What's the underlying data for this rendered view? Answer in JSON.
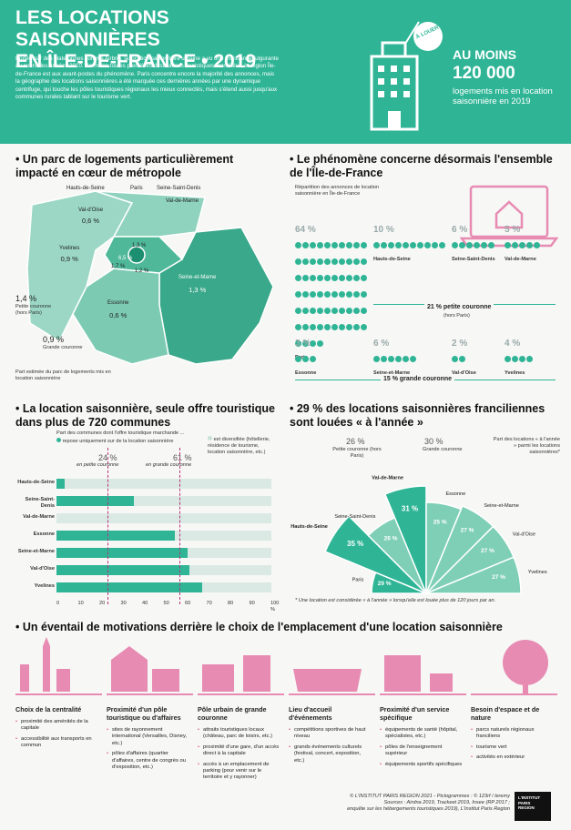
{
  "header": {
    "title_line1": "LES LOCATIONS SAISONNIÈRES",
    "title_line2": "EN ÎLE-DE-FRANCE • 2019",
    "intro": "Portée par des plateformes comme Airbnb, la location saisonnière urbaine a vu une croissance fulgurante au cours des années 2010. Parmi les toutes premières destinations touristiques mondiales, la région Île-de-France est aux avant-postes du phénomène. Paris concentre encore la majorité des annonces, mais la géographie des locations saisonnières a été marquée ces dernières années par une dynamique centrifuge, qui touche les pôles touristiques régionaux les mieux connectés, mais s'étend aussi jusqu'aux communes rurales tablant sur le tourisme vert.",
    "stat_title": "AU MOINS",
    "stat_number": "120 000",
    "stat_desc": "logements mis en location saisonnière en 2019",
    "tag": "À LOUER"
  },
  "map": {
    "title": "Un parc de logements particulièrement impacté en cœur de métropole",
    "labels": {
      "hds": "Hauts-de-Seine",
      "paris": "Paris",
      "ssd": "Seine-Saint-Denis",
      "vdm": "Val-de-Marne",
      "vdo": "Val-d'Oise",
      "vdo_pct": "0,6 %",
      "yv": "Yvelines",
      "yv_pct": "0,9 %",
      "sem": "Seine-et-Marne",
      "sem_pct": "1,3 %",
      "es": "Essonne",
      "es_pct": "0,6 %",
      "p1": "1,3 %",
      "p2": "6,5 %",
      "p3": "1,7 %",
      "p4": "1,2 %"
    },
    "petite_pct": "1,4 %",
    "petite_label": "Petite couronne (hors Paris)",
    "grande_pct": "0,9 %",
    "grande_label": "Grande couronne",
    "note": "Part estimée du parc de logements mis en location saisonnière"
  },
  "spread": {
    "title": "Le phénomène concerne désormais l'ensemble de l'Île-de-France",
    "subtitle": "Répartition des annonces de location saisonnière en Île-de-France",
    "row1": [
      {
        "pct": "64 %",
        "label": "Paris",
        "dots": 64
      },
      {
        "pct": "10 %",
        "label": "Hauts-de-Seine",
        "dots": 10
      },
      {
        "pct": "6 %",
        "label": "Seine-Saint-Denis",
        "dots": 6
      },
      {
        "pct": "5 %",
        "label": "Val-de-Marne",
        "dots": 5
      }
    ],
    "petite": "21 % petite couronne",
    "petite_sub": "(hors Paris)",
    "row2": [
      {
        "pct": "3 %",
        "label": "Essonne",
        "dots": 3
      },
      {
        "pct": "6 %",
        "label": "Seine-et-Marne",
        "dots": 6
      },
      {
        "pct": "2 %",
        "label": "Val-d'Oise",
        "dots": 2
      },
      {
        "pct": "4 %",
        "label": "Yvelines",
        "dots": 4
      }
    ],
    "grande": "15 % grande couronne"
  },
  "bars": {
    "title": "La location saisonnière, seule offre touristique dans plus de 720 communes",
    "legend_head": "Part des communes dont l'offre touristique marchande ...",
    "legend_a": "repose uniquement sur de la location saisonnière",
    "legend_b": "est diversifiée (hôtellerie, résidence de tourisme, location saisonnière, etc.)",
    "mark1_pct": "24 %",
    "mark1_label": "en petite couronne",
    "mark2_pct": "61 %",
    "mark2_label": "en grande couronne",
    "rows": [
      {
        "label": "Hauts-de-Seine",
        "value": 4
      },
      {
        "label": "Seine-Saint-Denis",
        "value": 36
      },
      {
        "label": "Val-de-Marne",
        "value": 0
      },
      {
        "label": "Essonne",
        "value": 55
      },
      {
        "label": "Seine-et-Marne",
        "value": 61
      },
      {
        "label": "Val-d'Oise",
        "value": 62
      },
      {
        "label": "Yvelines",
        "value": 68
      }
    ],
    "ticks": [
      "0",
      "10",
      "20",
      "30",
      "40",
      "50",
      "60",
      "70",
      "80",
      "90",
      "100 %"
    ]
  },
  "fan": {
    "title": "29 % des locations saisonnières franciliennes sont louées « à l'année »",
    "petite": "26 %",
    "petite_label": "Petite couronne (hors Paris)",
    "grande": "30 %",
    "grande_label": "Grande couronne",
    "legend": "Part des locations « à l'année » parmi les locations saisonnières*",
    "slices": [
      {
        "label": "Paris",
        "value": "29 %"
      },
      {
        "label": "Hauts-de-Seine",
        "value": "35 %"
      },
      {
        "label": "Seine-Saint-Denis",
        "value": "26 %"
      },
      {
        "label": "Val-de-Marne",
        "value": "31 %"
      },
      {
        "label": "Essonne",
        "value": "25 %"
      },
      {
        "label": "Seine-et-Marne",
        "value": "27 %"
      },
      {
        "label": "Val-d'Oise",
        "value": "27 %"
      },
      {
        "label": "Yvelines",
        "value": "27 %"
      }
    ],
    "note": "* Une location est considérée « à l'année » lorsqu'elle est louée plus de 120 jours par an."
  },
  "motivations": {
    "title": "Un éventail de motivations derrière le choix de l'emplacement d'une location saisonnière",
    "items": [
      {
        "title": "Choix de la centralité",
        "points": [
          "proximité des aménités de la capitale",
          "accessibilité aux transports en commun"
        ]
      },
      {
        "title": "Proximité d'un pôle touristique ou d'affaires",
        "points": [
          "sites de rayonnement international (Versailles, Disney, etc.)",
          "pôles d'affaires (quartier d'affaires, centre de congrès ou d'exposition, etc.)"
        ]
      },
      {
        "title": "Pôle urbain de grande couronne",
        "points": [
          "attraits touristiques locaux (château, parc de loisirs, etc.)",
          "proximité d'une gare, d'un accès direct à la capitale",
          "accès à un emplacement de parking (pour venir sur le territoire et y rayonner)"
        ]
      },
      {
        "title": "Lieu d'accueil d'événements",
        "points": [
          "compétitions sportives de haut niveau",
          "grands événements culturels (festival, concert, exposition, etc.)"
        ]
      },
      {
        "title": "Proximité d'un service spécifique",
        "points": [
          "équipements de santé (hôpital, spécialistes, etc.)",
          "pôles de l'enseignement supérieur",
          "équipements sportifs spécifiques"
        ]
      },
      {
        "title": "Besoin d'espace et de nature",
        "points": [
          "parcs naturels régionaux franciliens",
          "tourisme vert",
          "activités en extérieur"
        ]
      }
    ]
  },
  "footer": {
    "line1": "© L'INSTITUT PARIS REGION 2021 - Pictogrammes : © 123rf / leremy",
    "line2": "Sources : Airdna 2019, Trackeet 2019, Insee (RP 2017 ;",
    "line3": "enquête sur les hébergements touristiques 2019), L'Institut Paris Region",
    "logo": "L'INSTITUT PARIS REGION"
  }
}
